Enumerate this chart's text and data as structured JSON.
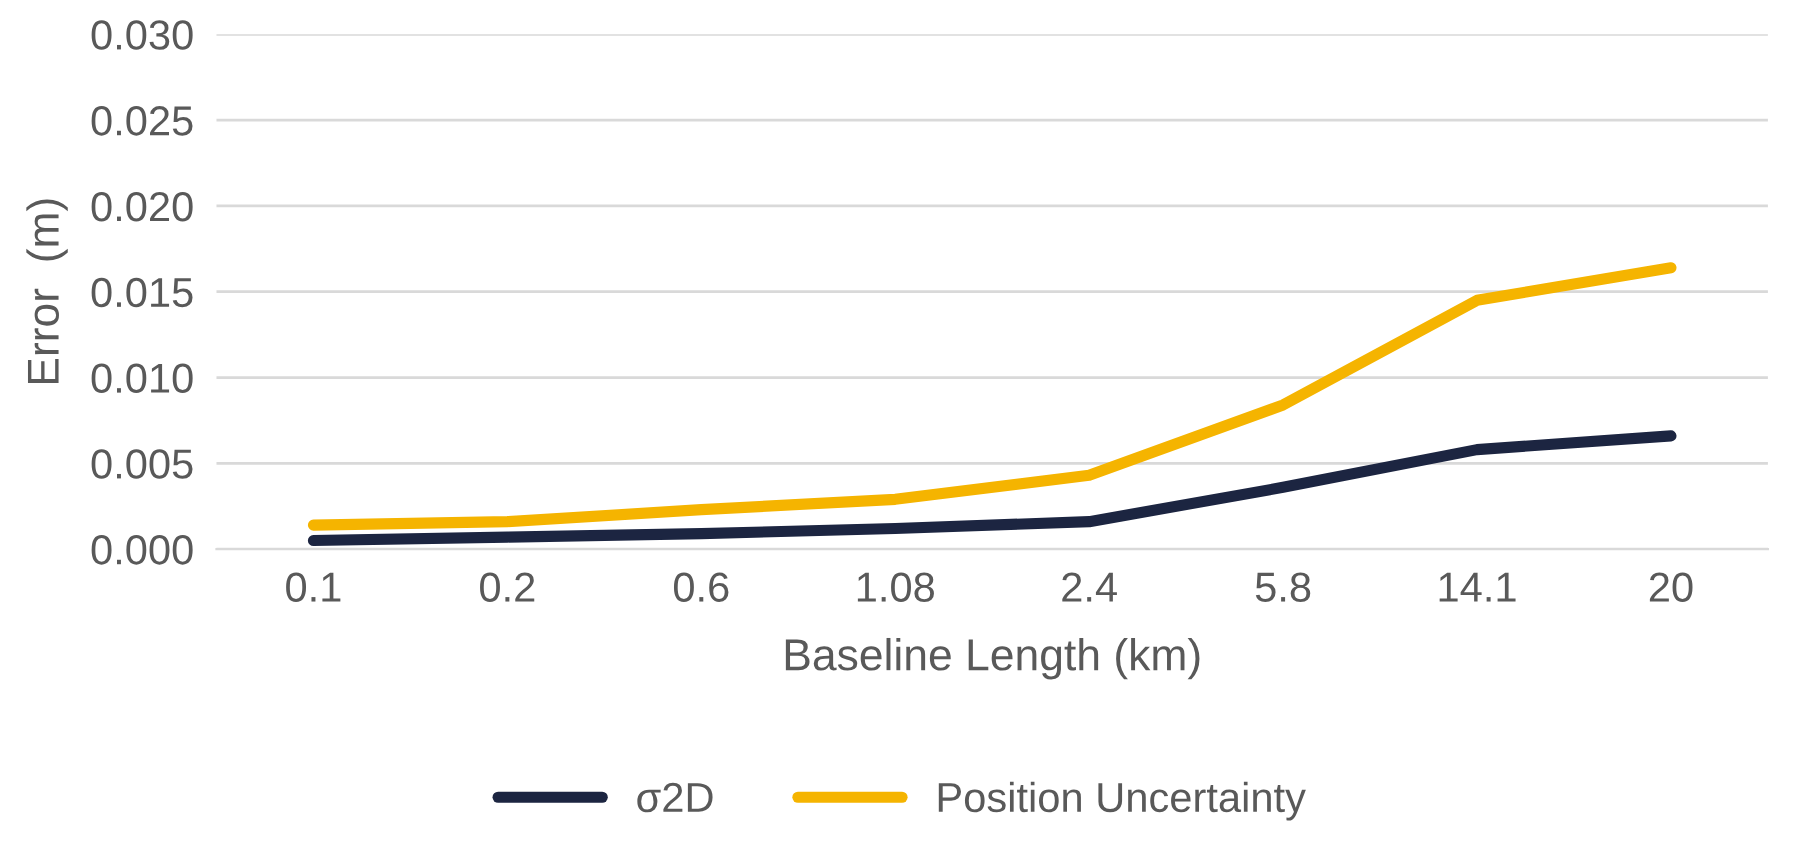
{
  "chart_data": {
    "type": "line",
    "xlabel": "Baseline Length (km)",
    "ylabel": "Error  (m)",
    "categories": [
      "0.1",
      "0.2",
      "0.6",
      "1.08",
      "2.4",
      "5.8",
      "14.1",
      "20"
    ],
    "series": [
      {
        "name": "σ2D",
        "color": "#1c2541",
        "values": [
          0.0005,
          0.0007,
          0.0009,
          0.0012,
          0.0016,
          0.0036,
          0.0058,
          0.0066
        ]
      },
      {
        "name": "Position Uncertainty",
        "color": "#f5b400",
        "values": [
          0.0014,
          0.0016,
          0.0023,
          0.0029,
          0.0043,
          0.0084,
          0.0145,
          0.0164
        ]
      }
    ],
    "ylim": [
      0,
      0.03
    ],
    "yticks": [
      {
        "value": 0,
        "label": "0.000"
      },
      {
        "value": 0.005,
        "label": "0.005"
      },
      {
        "value": 0.01,
        "label": "0.010"
      },
      {
        "value": 0.015,
        "label": "0.015"
      },
      {
        "value": 0.02,
        "label": "0.020"
      },
      {
        "value": 0.025,
        "label": "0.025"
      },
      {
        "value": 0.03,
        "label": "0.030"
      }
    ],
    "grid": "y",
    "legend": "bottom",
    "marker": "none",
    "line_style": "solid"
  }
}
